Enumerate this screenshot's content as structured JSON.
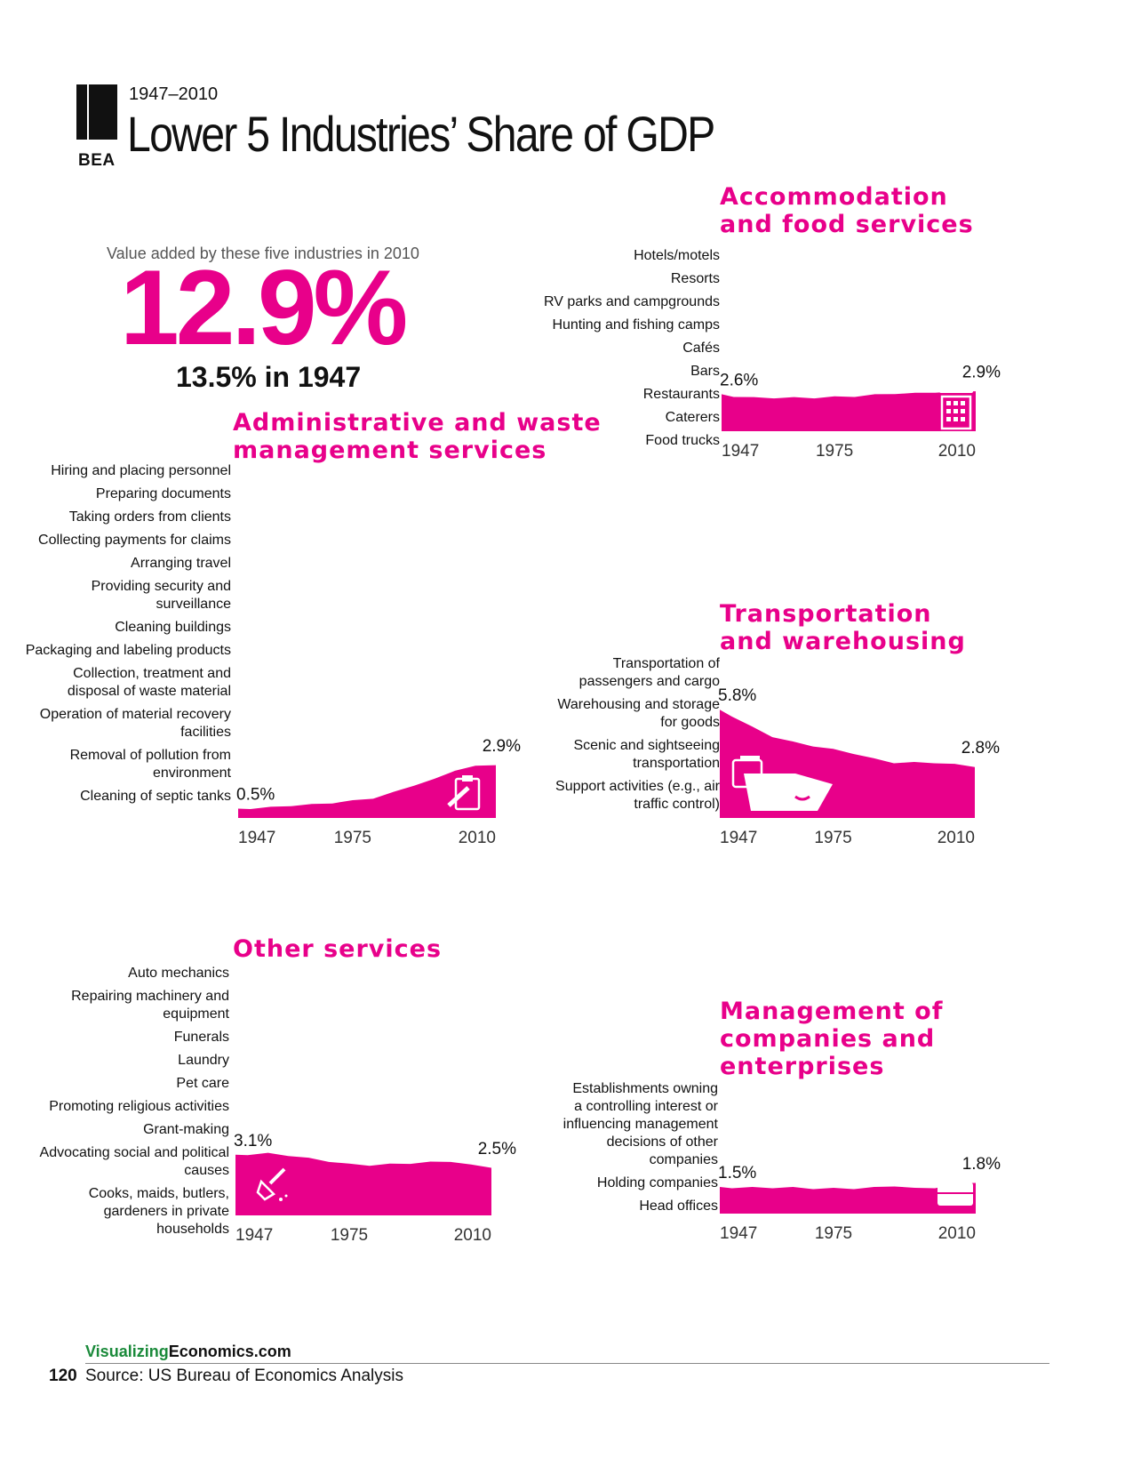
{
  "header": {
    "logo_text": "BEA",
    "years": "1947–2010",
    "title": "Lower 5 Industries’ Share of GDP"
  },
  "summary": {
    "caption": "Value added by these five industries in 2010",
    "value": "12.9%",
    "sub": "13.5% in 1947"
  },
  "colors": {
    "accent": "#e8008a",
    "brand_green": "#1a8a3a"
  },
  "footer": {
    "brand_a": "Visualizing",
    "brand_b": "Economics.com",
    "page_number": "120",
    "source": "Source: US Bureau of Economics Analysis"
  },
  "sections": [
    {
      "title_lines": [
        "Accommodation",
        "and food services"
      ],
      "items": [
        "Hotels/motels",
        "Resorts",
        "RV parks and campgrounds",
        "Hunting and fishing camps",
        "Cafés",
        "Bars",
        "Restaurants",
        "Caterers",
        "Food trucks"
      ],
      "icon": "hotel-icon"
    },
    {
      "title_lines": [
        "Administrative and waste",
        "management services"
      ],
      "items": [
        "Hiring and placing personnel",
        "Preparing documents",
        "Taking orders from clients",
        "Collecting payments for claims",
        "Arranging travel",
        "Providing security and surveillance",
        "Cleaning buildings",
        "Packaging and labeling products",
        "Collection, treatment and disposal of waste material",
        "Operation of material recovery facilities",
        "Removal of pollution from environment",
        "Cleaning of septic tanks"
      ],
      "icon": "clipboard-icon"
    },
    {
      "title_lines": [
        "Transportation",
        "and warehousing"
      ],
      "items": [
        "Transportation of passengers and cargo",
        "Warehousing and storage for goods",
        "Scenic and sightseeing transportation",
        "Support activities (e.g., air traffic control)"
      ],
      "icon": "ship-icon"
    },
    {
      "title_lines": [
        "Other services"
      ],
      "items": [
        "Auto mechanics",
        "Repairing machinery and equipment",
        "Funerals",
        "Laundry",
        "Pet care",
        "Promoting religious activities",
        "Grant-making",
        "Advocating social and political causes",
        "Cooks, maids, butlers, gardeners in private households"
      ],
      "icon": "broom-icon"
    },
    {
      "title_lines": [
        "Management of",
        "companies and",
        "enterprises"
      ],
      "items": [
        "Establishments owning a controlling interest or influencing management decisions of other companies",
        "Holding companies",
        "Head offices"
      ],
      "icon": "briefcase-icon"
    }
  ],
  "chart_data": [
    {
      "type": "area",
      "title": "Accommodation and food services",
      "x": [
        1947,
        1950,
        1955,
        1960,
        1965,
        1970,
        1975,
        1980,
        1985,
        1990,
        1995,
        2000,
        2005,
        2010
      ],
      "values": [
        2.6,
        2.5,
        2.4,
        2.4,
        2.4,
        2.4,
        2.45,
        2.5,
        2.6,
        2.7,
        2.7,
        2.8,
        2.8,
        2.9
      ],
      "start_label": "2.6%",
      "end_label": "2.9%",
      "xticks": [
        "1947",
        "1975",
        "2010"
      ],
      "ylim": [
        0,
        3.5
      ]
    },
    {
      "type": "area",
      "title": "Administrative and waste management services",
      "x": [
        1947,
        1950,
        1955,
        1960,
        1965,
        1970,
        1975,
        1980,
        1985,
        1990,
        1995,
        2000,
        2005,
        2010
      ],
      "values": [
        0.5,
        0.55,
        0.6,
        0.7,
        0.75,
        0.85,
        0.95,
        1.1,
        1.4,
        1.8,
        2.1,
        2.6,
        2.8,
        2.9
      ],
      "start_label": "0.5%",
      "end_label": "2.9%",
      "xticks": [
        "1947",
        "1975",
        "2010"
      ],
      "ylim": [
        0,
        3.5
      ]
    },
    {
      "type": "area",
      "title": "Transportation and warehousing",
      "x": [
        1947,
        1950,
        1955,
        1960,
        1965,
        1970,
        1975,
        1980,
        1985,
        1990,
        1995,
        2000,
        2005,
        2010
      ],
      "values": [
        5.8,
        5.5,
        4.9,
        4.4,
        4.1,
        3.9,
        3.7,
        3.5,
        3.2,
        3.0,
        3.0,
        3.0,
        2.9,
        2.8
      ],
      "start_label": "5.8%",
      "end_label": "2.8%",
      "xticks": [
        "1947",
        "1975",
        "2010"
      ],
      "ylim": [
        0,
        6
      ]
    },
    {
      "type": "area",
      "title": "Other services",
      "x": [
        1947,
        1950,
        1955,
        1960,
        1965,
        1970,
        1975,
        1980,
        1985,
        1990,
        1995,
        2000,
        2005,
        2010
      ],
      "values": [
        3.1,
        3.15,
        3.2,
        3.1,
        2.95,
        2.8,
        2.65,
        2.6,
        2.65,
        2.7,
        2.75,
        2.8,
        2.6,
        2.5
      ],
      "start_label": "3.1%",
      "end_label": "2.5%",
      "xticks": [
        "1947",
        "1975",
        "2010"
      ],
      "ylim": [
        0,
        3.5
      ]
    },
    {
      "type": "area",
      "title": "Management of companies and enterprises",
      "x": [
        1947,
        1950,
        1955,
        1960,
        1965,
        1970,
        1975,
        1980,
        1985,
        1990,
        1995,
        2000,
        2005,
        2010
      ],
      "values": [
        1.5,
        1.5,
        1.5,
        1.5,
        1.5,
        1.45,
        1.45,
        1.45,
        1.5,
        1.6,
        1.45,
        1.5,
        1.7,
        1.8
      ],
      "start_label": "1.5%",
      "end_label": "1.8%",
      "xticks": [
        "1947",
        "1975",
        "2010"
      ],
      "ylim": [
        0,
        3.5
      ]
    }
  ]
}
